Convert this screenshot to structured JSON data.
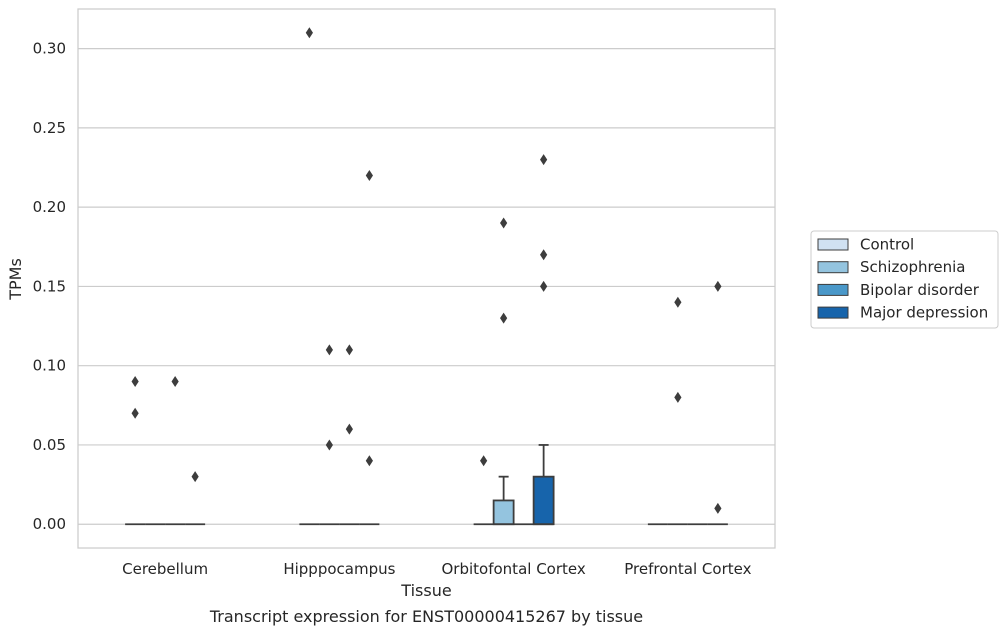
{
  "chart_data": {
    "type": "box",
    "caption": "Transcript expression for ENST00000415267 by tissue",
    "xlabel": "Tissue",
    "ylabel": "TPMs",
    "ylim": [
      -0.015,
      0.325
    ],
    "yticks": [
      "0.00",
      "0.05",
      "0.10",
      "0.15",
      "0.20",
      "0.25",
      "0.30"
    ],
    "ytick_values": [
      0,
      0.05,
      0.1,
      0.15,
      0.2,
      0.25,
      0.3
    ],
    "grid": true,
    "legend_position": "right",
    "categories": [
      "Cerebellum",
      "Hipppocampus",
      "Orbitofontal Cortex",
      "Prefrontal Cortex"
    ],
    "series": [
      {
        "name": "Control",
        "color": "#d0e1f2",
        "boxes": [
          {
            "q1": 0,
            "median": 0,
            "q3": 0,
            "whisker_low": 0,
            "whisker_high": 0,
            "outliers": [
              0.09,
              0.07
            ]
          },
          {
            "q1": 0,
            "median": 0,
            "q3": 0,
            "whisker_low": 0,
            "whisker_high": 0,
            "outliers": [
              0.31
            ]
          },
          {
            "q1": 0,
            "median": 0,
            "q3": 0,
            "whisker_low": 0,
            "whisker_high": 0,
            "outliers": [
              0.04
            ]
          },
          {
            "q1": 0,
            "median": 0,
            "q3": 0,
            "whisker_low": 0,
            "whisker_high": 0,
            "outliers": []
          }
        ]
      },
      {
        "name": "Schizophrenia",
        "color": "#94c4df",
        "boxes": [
          {
            "q1": 0,
            "median": 0,
            "q3": 0,
            "whisker_low": 0,
            "whisker_high": 0,
            "outliers": []
          },
          {
            "q1": 0,
            "median": 0,
            "q3": 0,
            "whisker_low": 0,
            "whisker_high": 0,
            "outliers": [
              0.11,
              0.05
            ]
          },
          {
            "q1": 0,
            "median": 0,
            "q3": 0.015,
            "whisker_low": 0,
            "whisker_high": 0.03,
            "outliers": [
              0.19,
              0.13
            ]
          },
          {
            "q1": 0,
            "median": 0,
            "q3": 0,
            "whisker_low": 0,
            "whisker_high": 0,
            "outliers": [
              0.14,
              0.08
            ]
          }
        ]
      },
      {
        "name": "Bipolar disorder",
        "color": "#4a98c9",
        "boxes": [
          {
            "q1": 0,
            "median": 0,
            "q3": 0,
            "whisker_low": 0,
            "whisker_high": 0,
            "outliers": [
              0.09
            ]
          },
          {
            "q1": 0,
            "median": 0,
            "q3": 0,
            "whisker_low": 0,
            "whisker_high": 0,
            "outliers": [
              0.11,
              0.06
            ]
          },
          {
            "q1": 0,
            "median": 0,
            "q3": 0,
            "whisker_low": 0,
            "whisker_high": 0,
            "outliers": []
          },
          {
            "q1": 0,
            "median": 0,
            "q3": 0,
            "whisker_low": 0,
            "whisker_high": 0,
            "outliers": []
          }
        ]
      },
      {
        "name": "Major depression",
        "color": "#1764ab",
        "boxes": [
          {
            "q1": 0,
            "median": 0,
            "q3": 0,
            "whisker_low": 0,
            "whisker_high": 0,
            "outliers": [
              0.03
            ]
          },
          {
            "q1": 0,
            "median": 0,
            "q3": 0,
            "whisker_low": 0,
            "whisker_high": 0,
            "outliers": [
              0.22,
              0.04
            ]
          },
          {
            "q1": 0,
            "median": 0,
            "q3": 0.03,
            "whisker_low": 0,
            "whisker_high": 0.05,
            "outliers": [
              0.23,
              0.17,
              0.15
            ]
          },
          {
            "q1": 0,
            "median": 0,
            "q3": 0,
            "whisker_low": 0,
            "whisker_high": 0,
            "outliers": [
              0.15,
              0.01
            ]
          }
        ]
      }
    ]
  }
}
